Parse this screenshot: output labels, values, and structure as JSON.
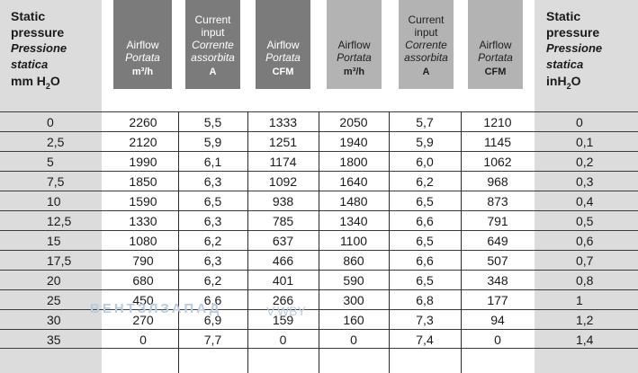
{
  "header": {
    "left": {
      "title_line1": "Static",
      "title_line2": "pressure",
      "italic_line1": "Pressione",
      "italic_line2": "statica",
      "unit_main": "mm H",
      "unit_sub": "2",
      "unit_tail": "O"
    },
    "right": {
      "title_line1": "Static",
      "title_line2": "pressure",
      "italic_line1": "Pressione",
      "italic_line2": "statica",
      "unit_main": "inH",
      "unit_sub": "2",
      "unit_tail": "O"
    },
    "group1": [
      {
        "line1": "Airflow",
        "line2": "Portata",
        "unit": "m³/h"
      },
      {
        "line0": "Current",
        "line1": "input",
        "line2": "Corrente",
        "line3": "assorbita",
        "unit": "A"
      },
      {
        "line1": "Airflow",
        "line2": "Portata",
        "unit": "CFM"
      }
    ],
    "group2": [
      {
        "line1": "Airflow",
        "line2": "Portata",
        "unit": "m³/h"
      },
      {
        "line0": "Current",
        "line1": "input",
        "line2": "Corrente",
        "line3": "assorbita",
        "unit": "A"
      },
      {
        "line1": "Airflow",
        "line2": "Portata",
        "unit": "CFM"
      }
    ]
  },
  "rows": [
    [
      "0",
      "2260",
      "5,5",
      "1333",
      "2050",
      "5,7",
      "1210",
      "0"
    ],
    [
      "2,5",
      "2120",
      "5,9",
      "1251",
      "1940",
      "5,9",
      "1145",
      "0,1"
    ],
    [
      "5",
      "1990",
      "6,1",
      "1174",
      "1800",
      "6,0",
      "1062",
      "0,2"
    ],
    [
      "7,5",
      "1850",
      "6,3",
      "1092",
      "1640",
      "6,2",
      "968",
      "0,3"
    ],
    [
      "10",
      "1590",
      "6,5",
      "938",
      "1480",
      "6,5",
      "873",
      "0,4"
    ],
    [
      "12,5",
      "1330",
      "6,3",
      "785",
      "1340",
      "6,6",
      "791",
      "0,5"
    ],
    [
      "15",
      "1080",
      "6,2",
      "637",
      "1100",
      "6,5",
      "649",
      "0,6"
    ],
    [
      "17,5",
      "790",
      "6,3",
      "466",
      "860",
      "6,6",
      "507",
      "0,7"
    ],
    [
      "20",
      "680",
      "6,2",
      "401",
      "590",
      "6,5",
      "348",
      "0,8"
    ],
    [
      "25",
      "450",
      "6,6",
      "266",
      "300",
      "6,8",
      "177",
      "1"
    ],
    [
      "30",
      "270",
      "6,9",
      "159",
      "160",
      "7,3",
      "94",
      "1,2"
    ],
    [
      "35",
      "0",
      "7,7",
      "0",
      "0",
      "7,4",
      "0",
      "1,4"
    ]
  ],
  "watermark": {
    "text1": "ВЕНТЗЛЗАПАД",
    "text2": "V.WBY"
  }
}
